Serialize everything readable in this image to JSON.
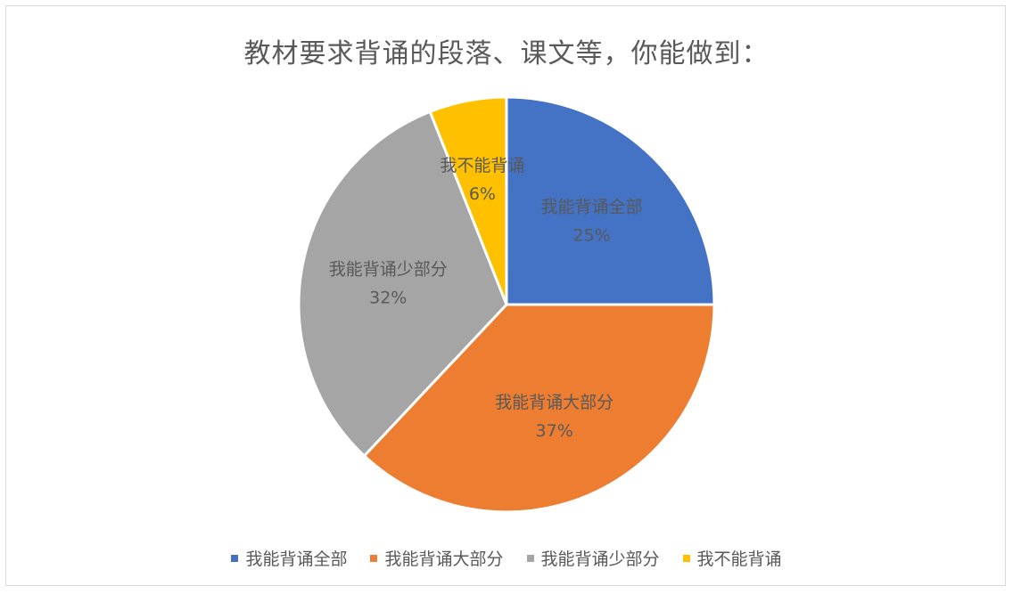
{
  "chart_data": {
    "type": "pie",
    "title": "教材要求背诵的段落、课文等，你能做到：",
    "categories": [
      "我能背诵全部",
      "我能背诵大部分",
      "我能背诵少部分",
      "我不能背诵"
    ],
    "values": [
      25,
      37,
      32,
      6
    ],
    "percent_labels": [
      "25%",
      "37%",
      "32%",
      "6%"
    ],
    "colors": [
      "#4472c4",
      "#ed7d31",
      "#a5a5a5",
      "#ffc000"
    ],
    "legend_position": "bottom",
    "start_angle": "12 o'clock, clockwise"
  }
}
